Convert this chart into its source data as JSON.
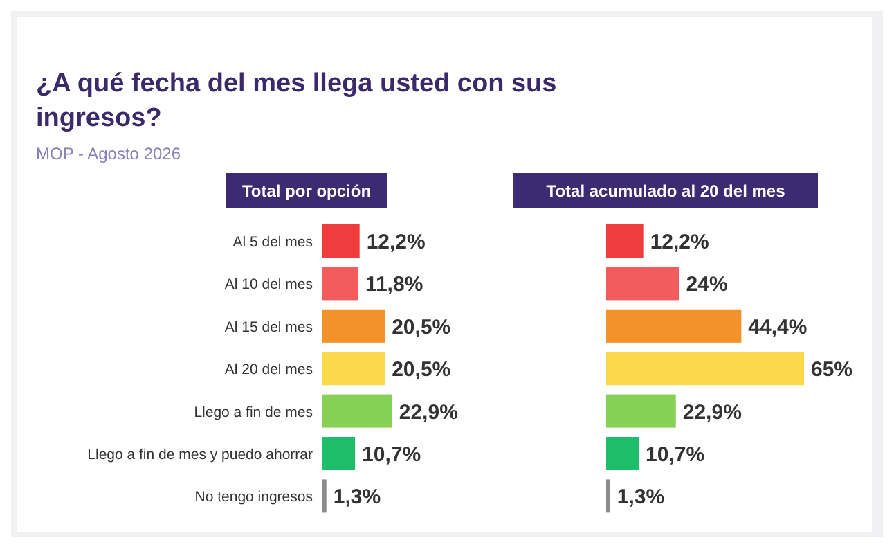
{
  "chart_data": [
    {
      "type": "other",
      "title": "¿A qué fecha del mes llega usted con sus ingresos?",
      "subtitle": "MOP - Agosto 2026"
    },
    {
      "type": "bar",
      "orientation": "horizontal",
      "title": "Total por opción",
      "categories": [
        "Al 5 del mes",
        "Al 10 del mes",
        "Al 15 del mes",
        "Al 20 del mes",
        "Llego a fin de mes",
        "Llego a fin de mes y puedo ahorrar",
        "No tengo ingresos"
      ],
      "values": [
        12.2,
        11.8,
        20.5,
        20.5,
        22.9,
        10.7,
        1.3
      ],
      "colors": [
        "#f03c3c",
        "#f25c5c",
        "#f3912a",
        "#fbd94a",
        "#86d155",
        "#1dbd6a",
        "#8c8c8c"
      ],
      "value_labels": [
        "12,2%",
        "11,8%",
        "20,5%",
        "20,5%",
        "22,9%",
        "10,7%",
        "1,3%"
      ],
      "tick_labels": "y"
    },
    {
      "type": "bar",
      "orientation": "horizontal",
      "title": "Total acumulado al 20 del mes",
      "categories": [
        null,
        null,
        null,
        null,
        null,
        null,
        null
      ],
      "values": [
        12.2,
        24,
        44.4,
        65,
        22.9,
        10.7,
        1.3
      ],
      "colors": [
        "#f03c3c",
        "#f25c5c",
        "#f3912a",
        "#fbd94a",
        "#86d155",
        "#1dbd6a",
        "#8c8c8c"
      ],
      "value_labels": [
        "12,2%",
        "24%",
        "44,4%",
        "65%",
        "22,9%",
        "10,7%",
        "1,3%"
      ]
    }
  ]
}
